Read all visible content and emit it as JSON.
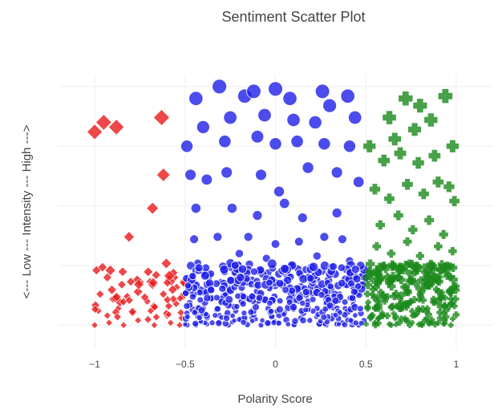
{
  "chart_data": {
    "type": "scatter",
    "title": "Sentiment Scatter Plot",
    "xlabel": "Polarity Score",
    "ylabel": "<--- Low --- Intensity --- High --->",
    "xlim": [
      -1.2,
      1.2
    ],
    "ylim": [
      -0.1,
      1.05
    ],
    "xticks": [
      -1,
      -0.5,
      0,
      0.5,
      1
    ],
    "xtick_labels": [
      "−1",
      "−0.5",
      "0",
      "0.5",
      "1"
    ],
    "yticks": [
      0,
      0.25,
      0.5,
      0.75,
      1
    ],
    "grid": true,
    "legend": "none",
    "series": [
      {
        "marker": "diamond",
        "color": "#e8191c",
        "range_x": [
          -1.0,
          -0.5
        ],
        "points": [
          [
            -1.0,
            0.81
          ],
          [
            -0.95,
            0.85
          ],
          [
            -0.88,
            0.83
          ],
          [
            -0.63,
            0.87
          ],
          [
            -0.62,
            0.63
          ],
          [
            -0.68,
            0.49
          ],
          [
            -0.81,
            0.37
          ],
          [
            -0.99,
            0.23
          ],
          [
            -0.93,
            0.2
          ],
          [
            -0.85,
            0.17
          ],
          [
            -0.75,
            0.18
          ],
          [
            -0.66,
            0.21
          ],
          [
            -0.56,
            0.2
          ],
          [
            -0.51,
            0.18
          ],
          [
            -0.97,
            0.13
          ],
          [
            -0.9,
            0.11
          ],
          [
            -0.82,
            0.12
          ],
          [
            -0.71,
            0.1
          ],
          [
            -0.62,
            0.13
          ],
          [
            -0.55,
            0.09
          ],
          [
            -0.98,
            0.06
          ],
          [
            -0.93,
            0.04
          ],
          [
            -0.87,
            0.07
          ],
          [
            -0.79,
            0.05
          ],
          [
            -0.69,
            0.06
          ],
          [
            -0.6,
            0.04
          ],
          [
            -0.52,
            0.03
          ],
          [
            -1.0,
            0.0
          ],
          [
            -0.92,
            0.01
          ],
          [
            -0.84,
            0.0
          ],
          [
            -0.76,
            0.02
          ],
          [
            -0.67,
            0.0
          ],
          [
            -0.58,
            0.01
          ],
          [
            -0.53,
            0.0
          ]
        ]
      },
      {
        "marker": "circle",
        "color": "#1f1fe8",
        "range_x": [
          -0.5,
          0.5
        ],
        "points": [
          [
            -0.44,
            0.95
          ],
          [
            -0.31,
            1.0
          ],
          [
            -0.17,
            0.96
          ],
          [
            -0.12,
            0.98
          ],
          [
            0.0,
            0.99
          ],
          [
            0.08,
            0.95
          ],
          [
            0.26,
            0.98
          ],
          [
            0.4,
            0.96
          ],
          [
            -0.4,
            0.83
          ],
          [
            -0.25,
            0.87
          ],
          [
            -0.06,
            0.88
          ],
          [
            0.1,
            0.86
          ],
          [
            0.22,
            0.85
          ],
          [
            0.3,
            0.92
          ],
          [
            0.44,
            0.87
          ],
          [
            -0.49,
            0.75
          ],
          [
            -0.28,
            0.77
          ],
          [
            -0.1,
            0.79
          ],
          [
            0.0,
            0.76
          ],
          [
            0.12,
            0.77
          ],
          [
            0.27,
            0.76
          ],
          [
            0.41,
            0.75
          ],
          [
            -0.47,
            0.63
          ],
          [
            -0.38,
            0.61
          ],
          [
            -0.27,
            0.64
          ],
          [
            -0.08,
            0.63
          ],
          [
            0.02,
            0.56
          ],
          [
            0.18,
            0.66
          ],
          [
            0.34,
            0.64
          ],
          [
            0.46,
            0.6
          ],
          [
            -0.44,
            0.49
          ],
          [
            -0.24,
            0.49
          ],
          [
            -0.1,
            0.46
          ],
          [
            0.05,
            0.51
          ],
          [
            0.15,
            0.45
          ],
          [
            0.34,
            0.47
          ],
          [
            -0.45,
            0.36
          ],
          [
            -0.32,
            0.37
          ],
          [
            -0.15,
            0.37
          ],
          [
            0.0,
            0.34
          ],
          [
            0.13,
            0.35
          ],
          [
            0.27,
            0.37
          ],
          [
            0.37,
            0.36
          ],
          [
            -0.43,
            0.26
          ],
          [
            -0.2,
            0.3
          ],
          [
            -0.05,
            0.28
          ],
          [
            0.09,
            0.25
          ],
          [
            0.23,
            0.29
          ],
          [
            0.41,
            0.27
          ],
          [
            -0.48,
            0.2
          ],
          [
            -0.39,
            0.22
          ],
          [
            -0.3,
            0.18
          ],
          [
            -0.22,
            0.21
          ],
          [
            -0.13,
            0.19
          ],
          [
            -0.04,
            0.22
          ],
          [
            0.05,
            0.18
          ],
          [
            0.14,
            0.21
          ],
          [
            0.23,
            0.19
          ],
          [
            0.32,
            0.22
          ],
          [
            0.42,
            0.19
          ],
          [
            0.48,
            0.21
          ],
          [
            -0.45,
            0.13
          ],
          [
            -0.36,
            0.11
          ],
          [
            -0.27,
            0.14
          ],
          [
            -0.18,
            0.1
          ],
          [
            -0.09,
            0.13
          ],
          [
            0.0,
            0.11
          ],
          [
            0.09,
            0.14
          ],
          [
            0.18,
            0.1
          ],
          [
            0.27,
            0.13
          ],
          [
            0.36,
            0.11
          ],
          [
            0.45,
            0.14
          ],
          [
            -0.49,
            0.05
          ],
          [
            -0.4,
            0.07
          ],
          [
            -0.31,
            0.04
          ],
          [
            -0.22,
            0.06
          ],
          [
            -0.13,
            0.03
          ],
          [
            -0.04,
            0.07
          ],
          [
            0.05,
            0.05
          ],
          [
            0.14,
            0.03
          ],
          [
            0.23,
            0.07
          ],
          [
            0.32,
            0.04
          ],
          [
            0.41,
            0.06
          ],
          [
            0.49,
            0.02
          ],
          [
            -0.44,
            0.0
          ],
          [
            -0.35,
            0.01
          ],
          [
            -0.26,
            0.0
          ],
          [
            -0.17,
            0.02
          ],
          [
            -0.08,
            0.0
          ],
          [
            0.01,
            0.01
          ],
          [
            0.1,
            0.0
          ],
          [
            0.19,
            0.02
          ],
          [
            0.28,
            0.0
          ],
          [
            0.37,
            0.01
          ],
          [
            0.46,
            0.0
          ]
        ]
      },
      {
        "marker": "cross",
        "color": "#1a8a1a",
        "range_x": [
          0.5,
          1.0
        ],
        "points": [
          [
            0.63,
            0.87
          ],
          [
            0.72,
            0.95
          ],
          [
            0.8,
            0.92
          ],
          [
            0.86,
            0.86
          ],
          [
            0.94,
            0.96
          ],
          [
            0.98,
            0.75
          ],
          [
            0.77,
            0.82
          ],
          [
            0.66,
            0.78
          ],
          [
            0.52,
            0.75
          ],
          [
            0.6,
            0.69
          ],
          [
            0.69,
            0.72
          ],
          [
            0.79,
            0.68
          ],
          [
            0.88,
            0.71
          ],
          [
            0.96,
            0.58
          ],
          [
            0.55,
            0.57
          ],
          [
            0.63,
            0.53
          ],
          [
            0.73,
            0.59
          ],
          [
            0.82,
            0.55
          ],
          [
            0.9,
            0.6
          ],
          [
            0.99,
            0.52
          ],
          [
            0.58,
            0.42
          ],
          [
            0.68,
            0.46
          ],
          [
            0.76,
            0.4
          ],
          [
            0.85,
            0.44
          ],
          [
            0.93,
            0.38
          ],
          [
            0.56,
            0.33
          ],
          [
            0.64,
            0.3
          ],
          [
            0.73,
            0.35
          ],
          [
            0.8,
            0.29
          ],
          [
            0.9,
            0.33
          ],
          [
            0.98,
            0.31
          ],
          [
            0.52,
            0.22
          ],
          [
            0.6,
            0.25
          ],
          [
            0.68,
            0.2
          ],
          [
            0.77,
            0.24
          ],
          [
            0.86,
            0.21
          ],
          [
            0.95,
            0.25
          ],
          [
            0.54,
            0.15
          ],
          [
            0.62,
            0.12
          ],
          [
            0.71,
            0.16
          ],
          [
            0.8,
            0.13
          ],
          [
            0.89,
            0.15
          ],
          [
            0.97,
            0.11
          ],
          [
            0.51,
            0.07
          ],
          [
            0.59,
            0.05
          ],
          [
            0.67,
            0.08
          ],
          [
            0.76,
            0.04
          ],
          [
            0.84,
            0.07
          ],
          [
            0.93,
            0.05
          ],
          [
            0.99,
            0.08
          ],
          [
            0.55,
            0.01
          ],
          [
            0.64,
            0.0
          ],
          [
            0.72,
            0.02
          ],
          [
            0.81,
            0.0
          ],
          [
            0.9,
            0.01
          ],
          [
            0.97,
            0.0
          ]
        ]
      }
    ]
  }
}
